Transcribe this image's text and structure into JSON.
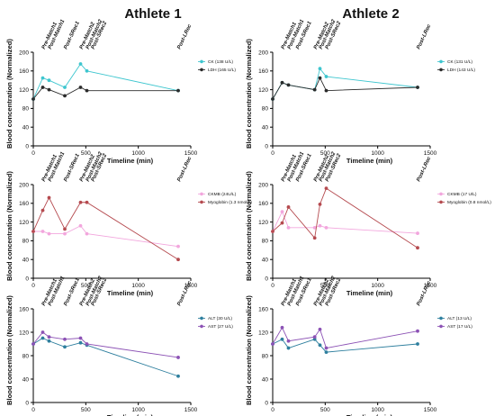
{
  "column_titles": [
    "Athlete 1",
    "Athlete 2"
  ],
  "chart_data": [
    {
      "type": "line",
      "title": "Athlete 1",
      "xlabel": "Timeline (min)",
      "ylabel": "Blood concentration (Normalized)",
      "xlim": [
        0,
        1500
      ],
      "ylim": [
        0,
        200
      ],
      "xticks": [
        0,
        500,
        1000,
        1500
      ],
      "yticks": [
        0,
        40,
        80,
        120,
        160,
        200
      ],
      "legend": "right",
      "series": [
        {
          "name": "CK (138 U/L)",
          "color": "#3ec6cf",
          "x": [
            0,
            90,
            150,
            300,
            450,
            510,
            1380
          ],
          "y": [
            100,
            145,
            140,
            125,
            175,
            160,
            118
          ]
        },
        {
          "name": "LDH (165 U/L)",
          "color": "#2b2b2b",
          "x": [
            0,
            90,
            150,
            300,
            450,
            510,
            1380
          ],
          "y": [
            100,
            125,
            120,
            107,
            125,
            118,
            118
          ]
        }
      ]
    },
    {
      "type": "line",
      "title": "Athlete 2",
      "xlabel": "Timeline (min)",
      "ylabel": "Blood concentration (Normalized)",
      "xlim": [
        0,
        1500
      ],
      "ylim": [
        0,
        200
      ],
      "xticks": [
        0,
        500,
        1000,
        1500
      ],
      "yticks": [
        0,
        40,
        80,
        120,
        160,
        200
      ],
      "legend": "right",
      "series": [
        {
          "name": "CK (131 U/L)",
          "color": "#3ec6cf",
          "x": [
            0,
            90,
            150,
            400,
            450,
            510,
            1380
          ],
          "y": [
            100,
            135,
            130,
            120,
            165,
            148,
            125
          ]
        },
        {
          "name": "LDH (143 U/L)",
          "color": "#2b2b2b",
          "x": [
            0,
            90,
            150,
            400,
            450,
            510,
            1380
          ],
          "y": [
            100,
            135,
            130,
            120,
            145,
            118,
            125
          ]
        }
      ]
    },
    {
      "type": "line",
      "xlabel": "Timeline (min)",
      "ylabel": "Blood concentration (Normalized)",
      "xlim": [
        0,
        1500
      ],
      "ylim": [
        0,
        200
      ],
      "xticks": [
        0,
        500,
        1000,
        1500
      ],
      "yticks": [
        0,
        40,
        80,
        120,
        160,
        200
      ],
      "legend": "right",
      "series": [
        {
          "name": "CKMB (24U/L)",
          "color": "#f2a6dd",
          "x": [
            0,
            90,
            150,
            300,
            450,
            510,
            1380
          ],
          "y": [
            100,
            100,
            95,
            95,
            112,
            95,
            68
          ]
        },
        {
          "name": "Myoglobin (1.3 nmol/L)",
          "color": "#b54a4f",
          "x": [
            0,
            90,
            150,
            300,
            450,
            510,
            1380
          ],
          "y": [
            100,
            145,
            172,
            105,
            162,
            162,
            40
          ]
        }
      ]
    },
    {
      "type": "line",
      "xlabel": "Timeline (min)",
      "ylabel": "Blood concentration (Normalized)",
      "xlim": [
        0,
        1500
      ],
      "ylim": [
        0,
        200
      ],
      "xticks": [
        0,
        500,
        1000,
        1500
      ],
      "yticks": [
        0,
        40,
        80,
        120,
        160,
        200
      ],
      "legend": "right",
      "series": [
        {
          "name": "CKMB (17 U/L)",
          "color": "#f2a6dd",
          "x": [
            0,
            90,
            150,
            400,
            450,
            510,
            1380
          ],
          "y": [
            100,
            142,
            108,
            108,
            112,
            108,
            96
          ]
        },
        {
          "name": "Myoglobin (0.8 nmol/L)",
          "color": "#b54a4f",
          "x": [
            0,
            90,
            150,
            400,
            450,
            510,
            1380
          ],
          "y": [
            100,
            118,
            152,
            86,
            158,
            192,
            65
          ]
        }
      ]
    },
    {
      "type": "line",
      "xlabel": "Timeline (min)",
      "ylabel": "Blood concentration (Normalized)",
      "xlim": [
        0,
        1500
      ],
      "ylim": [
        0,
        160
      ],
      "xticks": [
        0,
        500,
        1000,
        1500
      ],
      "yticks": [
        0,
        40,
        80,
        120,
        160
      ],
      "legend": "right",
      "series": [
        {
          "name": "ALT (30 U/L)",
          "color": "#2e7f9e",
          "x": [
            0,
            90,
            150,
            300,
            450,
            510,
            1380
          ],
          "y": [
            100,
            110,
            105,
            95,
            102,
            98,
            45
          ]
        },
        {
          "name": "AST (27 U/L)",
          "color": "#8c52b5",
          "x": [
            0,
            90,
            150,
            300,
            450,
            510,
            1380
          ],
          "y": [
            100,
            120,
            112,
            108,
            110,
            100,
            77
          ]
        }
      ]
    },
    {
      "type": "line",
      "xlabel": "Timeline (min)",
      "ylabel": "Blood concentration (Normalized)",
      "xlim": [
        0,
        1500
      ],
      "ylim": [
        0,
        160
      ],
      "xticks": [
        0,
        500,
        1000,
        1500
      ],
      "yticks": [
        0,
        40,
        80,
        120,
        160
      ],
      "legend": "right",
      "series": [
        {
          "name": "ALT (13 U/L)",
          "color": "#2e7f9e",
          "x": [
            0,
            90,
            150,
            400,
            450,
            510,
            1380
          ],
          "y": [
            100,
            108,
            93,
            108,
            98,
            86,
            100
          ]
        },
        {
          "name": "AST (17 U/L)",
          "color": "#8c52b5",
          "x": [
            0,
            90,
            150,
            400,
            450,
            510,
            1380
          ],
          "y": [
            100,
            128,
            105,
            112,
            125,
            93,
            122
          ]
        }
      ]
    }
  ],
  "event_labels": {
    "athlete1": [
      {
        "label": "Pre-Match1",
        "x": 90
      },
      {
        "label": "Post-Match1",
        "x": 150
      },
      {
        "label": "Post-SRec1",
        "x": 300
      },
      {
        "label": "Pre-Match2",
        "x": 450
      },
      {
        "label": "Post-Match2",
        "x": 510
      },
      {
        "label": "Post-SRec2",
        "x": 560
      },
      {
        "label": "Post-LRec",
        "x": 1380
      }
    ],
    "athlete2": [
      {
        "label": "Pre-Match1",
        "x": 90
      },
      {
        "label": "Post-Match1",
        "x": 150
      },
      {
        "label": "Post-SRec1",
        "x": 230
      },
      {
        "label": "Pre-Match2",
        "x": 400
      },
      {
        "label": "Post-Match2",
        "x": 450
      },
      {
        "label": "Post-SRec2",
        "x": 510
      },
      {
        "label": "Post-LRec",
        "x": 1380
      }
    ]
  }
}
